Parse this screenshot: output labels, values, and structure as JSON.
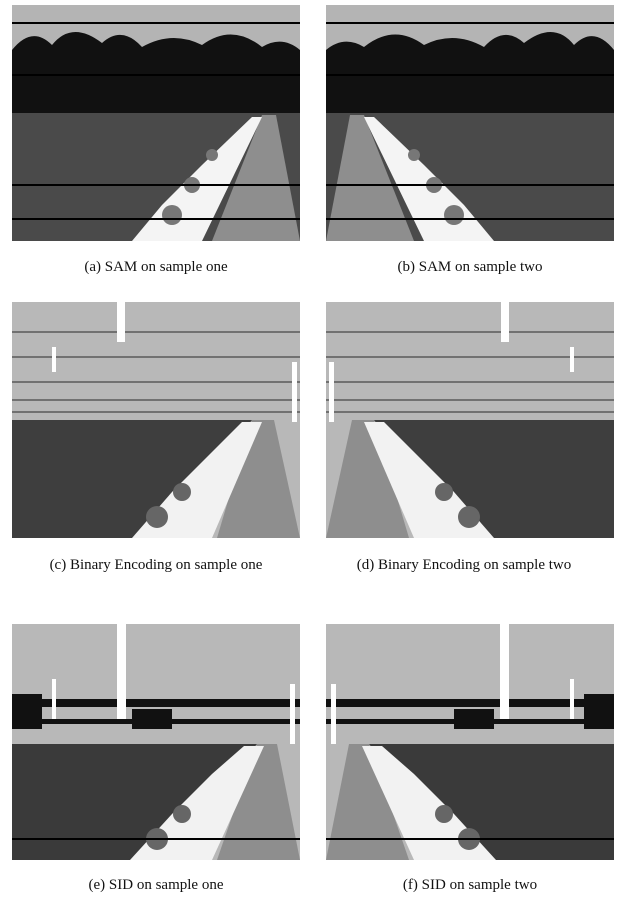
{
  "figure": {
    "subfigures": [
      {
        "caption": "(a) SAM on sample one"
      },
      {
        "caption": "(b) SAM on sample two"
      },
      {
        "caption": "(c) Binary Encoding on sample one"
      },
      {
        "caption": "(d) Binary Encoding on sample two"
      },
      {
        "caption": "(e) SID on sample one"
      },
      {
        "caption": "(f) SID on sample two"
      }
    ]
  }
}
